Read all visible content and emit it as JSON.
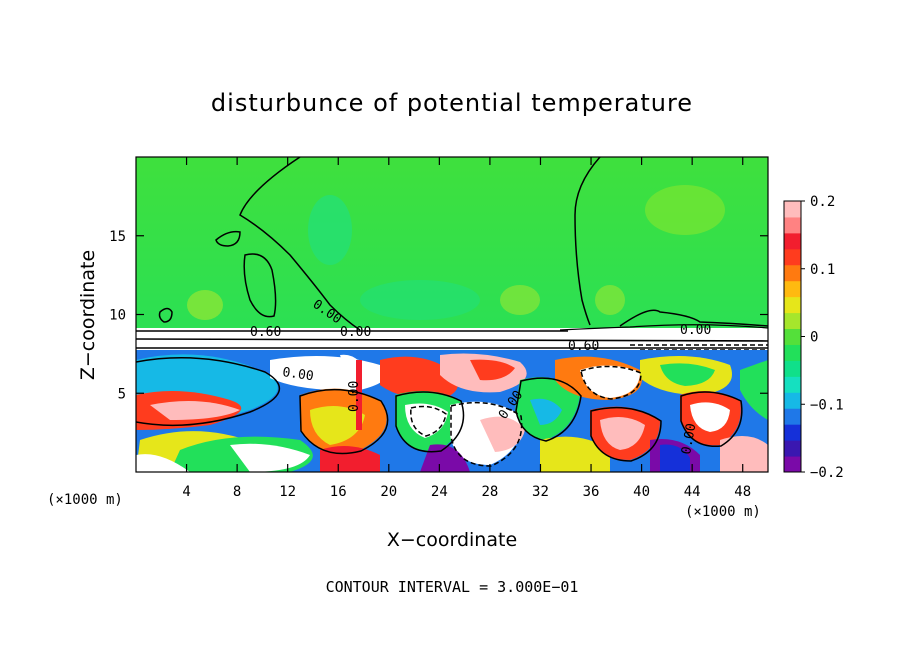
{
  "chart_data": {
    "type": "heatmap",
    "title": "disturbunce of potential temperature",
    "xlabel": "X−coordinate",
    "ylabel": "Z−coordinate",
    "x_unit_left": "(×1000 m)",
    "x_unit_right": "(×1000 m)",
    "xlim": [
      0,
      50
    ],
    "ylim": [
      0,
      20
    ],
    "x_ticks": [
      4,
      8,
      12,
      16,
      20,
      24,
      28,
      32,
      36,
      40,
      44,
      48
    ],
    "x_tick_labels": [
      "4",
      "8",
      "12",
      "16",
      "20",
      "24",
      "28",
      "32",
      "36",
      "40",
      "44",
      "48"
    ],
    "y_ticks": [
      5,
      10,
      15
    ],
    "y_tick_labels": [
      "5",
      "10",
      "15"
    ],
    "footer": "CONTOUR INTERVAL = 3.000E−01",
    "colorbar": {
      "range": [
        -0.2,
        0.2
      ],
      "tick_values": [
        0.2,
        0.1,
        0,
        -0.1,
        -0.2
      ],
      "tick_labels": [
        "0.2",
        "0.1",
        "0",
        "−0.1",
        "−0.2"
      ],
      "colors": [
        "#7a0aa8",
        "#3a17b0",
        "#1530d9",
        "#1f78e8",
        "#16b9e6",
        "#15e0c0",
        "#10e08a",
        "#22e05a",
        "#54e03a",
        "#a6e62c",
        "#e6e61a",
        "#ffba10",
        "#ff7a10",
        "#ff3c1e",
        "#f21e2e",
        "#ff8282",
        "#ffbcbc"
      ]
    },
    "contour_labels": [
      {
        "text": "0.00",
        "x": 16.0,
        "z": 15.2
      },
      {
        "text": "0.60",
        "x": 11.6,
        "z": 9.2
      },
      {
        "text": "0.00",
        "x": 16.6,
        "z": 8.4
      },
      {
        "text": "0.00",
        "x": 12.4,
        "z": 6.8
      },
      {
        "text": "0.60",
        "x": 36.6,
        "z": 8.3
      },
      {
        "text": "0.00",
        "x": 44.6,
        "z": 9.3
      },
      {
        "text": "0.00",
        "x": 17.2,
        "z": 4.6
      },
      {
        "text": "0.00",
        "x": 30.0,
        "z": 4.2
      },
      {
        "text": "0.00",
        "x": 44.0,
        "z": 2.3
      }
    ]
  }
}
